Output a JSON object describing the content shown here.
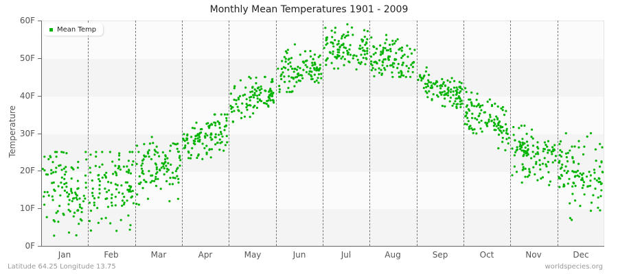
{
  "title": "Monthly Mean Temperatures 1901 - 2009",
  "legend": {
    "label": "Mean Temp",
    "color": "#00b300"
  },
  "axes": {
    "y_title": "Temperature",
    "y_ticks": [
      "0F",
      "10F",
      "20F",
      "30F",
      "40F",
      "50F",
      "60F"
    ],
    "x_ticks": [
      "Jan",
      "Feb",
      "Mar",
      "Apr",
      "May",
      "Jun",
      "Jul",
      "Aug",
      "Sep",
      "Oct",
      "Nov",
      "Dec"
    ]
  },
  "footer": {
    "location": "Latitude 64.25 Longitude 13.75",
    "source": "worldspecies.org"
  },
  "chart_data": {
    "type": "scatter",
    "title": "Monthly Mean Temperatures 1901 - 2009",
    "xlabel": "",
    "ylabel": "Temperature",
    "ylim": [
      0,
      60
    ],
    "y_unit": "F",
    "grid": "horizontal bands every 10F, dashed vertical month separators",
    "legend_position": "top-left inside plot",
    "categories": [
      "Jan",
      "Feb",
      "Mar",
      "Apr",
      "May",
      "Jun",
      "Jul",
      "Aug",
      "Sep",
      "Oct",
      "Nov",
      "Dec"
    ],
    "series": [
      {
        "name": "Mean Temp",
        "color": "#00b300",
        "points_per_month": 109,
        "approx_mean": [
          15,
          16,
          21,
          29,
          39,
          47,
          53,
          50,
          42,
          34,
          24,
          19
        ],
        "approx_min": [
          1.5,
          0.5,
          11,
          23,
          33,
          41,
          47,
          45,
          36,
          25,
          16,
          1.5
        ],
        "approx_max": [
          25,
          25,
          29,
          35,
          45,
          56,
          59,
          58,
          48,
          42,
          32,
          30
        ],
        "approx_spread": [
          5.5,
          5.5,
          4.0,
          2.8,
          2.6,
          2.8,
          2.6,
          2.6,
          2.2,
          3.2,
          3.2,
          5.0
        ]
      }
    ]
  }
}
